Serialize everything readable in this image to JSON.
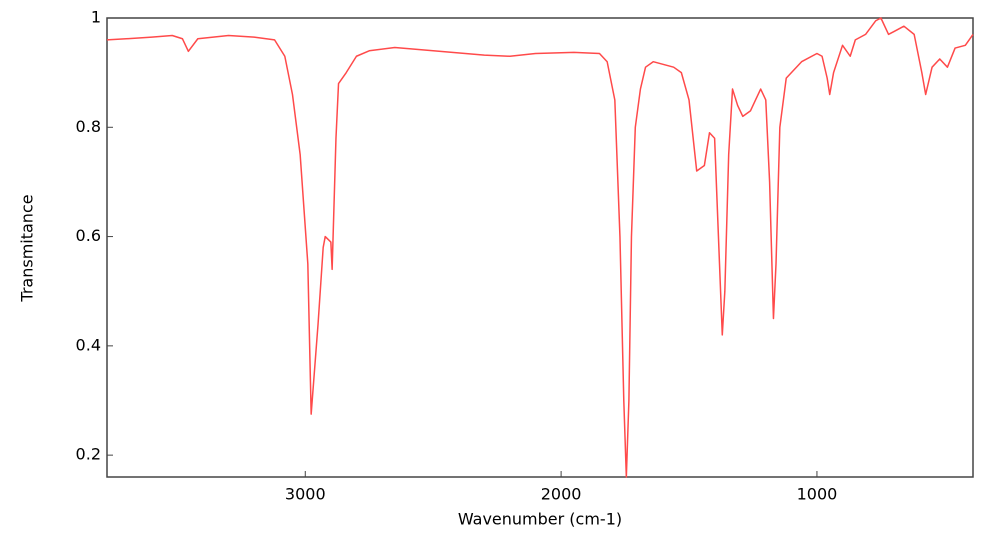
{
  "chart_data": {
    "type": "line",
    "x_label": "Wavenumber (cm-1)",
    "y_label": "Transmitance",
    "x": [
      3775,
      3700,
      3600,
      3520,
      3480,
      3457,
      3420,
      3300,
      3200,
      3120,
      3080,
      3050,
      3020,
      2990,
      2977,
      2950,
      2930,
      2922,
      2900,
      2895,
      2880,
      2870,
      2840,
      2800,
      2750,
      2650,
      2500,
      2300,
      2200,
      2100,
      1950,
      1850,
      1820,
      1790,
      1770,
      1755,
      1745,
      1735,
      1725,
      1710,
      1690,
      1670,
      1640,
      1600,
      1560,
      1530,
      1500,
      1470,
      1440,
      1420,
      1400,
      1385,
      1370,
      1360,
      1345,
      1330,
      1310,
      1290,
      1260,
      1240,
      1220,
      1200,
      1185,
      1170,
      1160,
      1145,
      1120,
      1060,
      1000,
      980,
      960,
      950,
      935,
      900,
      870,
      850,
      810,
      770,
      750,
      720,
      700,
      660,
      620,
      590,
      575,
      550,
      520,
      490,
      460,
      420,
      390
    ],
    "values": [
      0.96,
      0.962,
      0.965,
      0.968,
      0.962,
      0.939,
      0.962,
      0.968,
      0.965,
      0.96,
      0.93,
      0.86,
      0.75,
      0.55,
      0.275,
      0.44,
      0.58,
      0.6,
      0.59,
      0.54,
      0.78,
      0.88,
      0.9,
      0.93,
      0.94,
      0.946,
      0.94,
      0.932,
      0.93,
      0.935,
      0.937,
      0.935,
      0.92,
      0.85,
      0.6,
      0.3,
      0.16,
      0.3,
      0.6,
      0.8,
      0.87,
      0.91,
      0.92,
      0.915,
      0.91,
      0.9,
      0.85,
      0.72,
      0.73,
      0.79,
      0.78,
      0.6,
      0.42,
      0.5,
      0.75,
      0.87,
      0.84,
      0.82,
      0.83,
      0.85,
      0.87,
      0.85,
      0.7,
      0.45,
      0.55,
      0.8,
      0.89,
      0.92,
      0.935,
      0.93,
      0.89,
      0.86,
      0.9,
      0.95,
      0.93,
      0.96,
      0.97,
      0.995,
      1.0,
      0.97,
      0.975,
      0.985,
      0.97,
      0.9,
      0.86,
      0.91,
      0.925,
      0.91,
      0.945,
      0.95,
      0.97
    ],
    "color": "#ff4a4a",
    "xlim": [
      3775,
      390
    ],
    "xticks": [
      3000,
      2000,
      1000
    ],
    "ylim": [
      0.16,
      1.0
    ],
    "yticks": [
      0.2,
      0.4,
      0.6,
      0.8,
      1
    ]
  }
}
